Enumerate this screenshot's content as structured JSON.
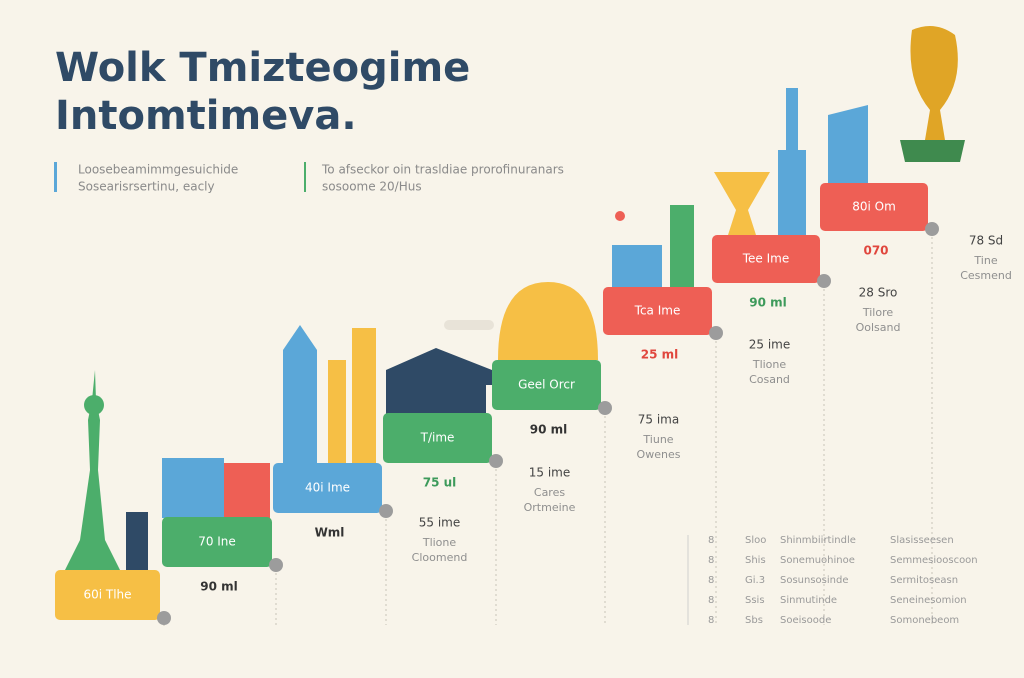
{
  "header": {
    "title_lines": [
      "Wolk Tmizteogime",
      "Intomtimeva."
    ]
  },
  "intro": [
    {
      "lines": [
        "Loosebeamimmgesuichide",
        "Sosearisrsertinu, eacly"
      ]
    },
    {
      "lines": [
        "To afseckor oin trasldiae prorofinuranars",
        "sosoome 20/Hus"
      ]
    }
  ],
  "steps": [
    {
      "label": "60i Tlhe"
    },
    {
      "label": "70 Ine",
      "amount": "90 ml"
    },
    {
      "label": "40i Ime",
      "amount": "Wml",
      "time": "55 ime",
      "note_lines": [
        "Tlione",
        "Cloomend"
      ]
    },
    {
      "label": "T/ime",
      "amount": "75 ul",
      "time": "15 ime",
      "note_lines": [
        "Cares",
        "Ortmeine"
      ]
    },
    {
      "label": "Geel Orcr",
      "amount": "90 ml",
      "time": "75 ima",
      "note_lines": [
        "Tiune",
        "Owenes"
      ]
    },
    {
      "label": "Tca Ime",
      "amount": "25 ml",
      "time": "25 ime",
      "note_lines": [
        "Tlione",
        "Cosand"
      ]
    },
    {
      "label": "Tee Ime",
      "amount": "90 ml",
      "time": "28 Sro",
      "note_lines": [
        "Tilore",
        "Oolsand"
      ]
    },
    {
      "label": "80i Om",
      "amount": "070",
      "time": "78 Sd",
      "note_lines": [
        "Tine",
        "Cesmend"
      ]
    }
  ],
  "legend_table": {
    "rows": [
      [
        "8",
        "Sloo",
        "Shinmbiirtindle",
        "Slasisseesen"
      ],
      [
        "8",
        "Shis",
        "Sonemuohinoe",
        "Semmesiooscoon"
      ],
      [
        "8",
        "Gi.3",
        "Sosunsosinde",
        "Sermitoseasn"
      ],
      [
        "8",
        "Ssis",
        "Sinmutinde",
        "Seneinesomion"
      ],
      [
        "8",
        "Sbs",
        "Soeisoode",
        "Somonebeom"
      ]
    ]
  }
}
